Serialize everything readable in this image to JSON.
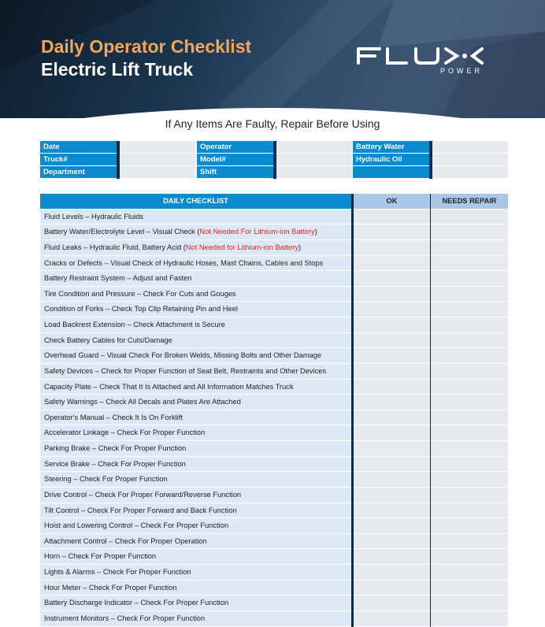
{
  "header": {
    "title": "Daily Operator Checklist",
    "subtitle": "Electric Lift Truck",
    "logo_text": "FLUX",
    "logo_sub": "POWER",
    "title_color": "#f2a65a"
  },
  "notice": "If Any Items Are Faulty, Repair Before Using",
  "info": [
    [
      "Date",
      "Truck#",
      "Department"
    ],
    [
      "Operator",
      "Model#",
      "Shift"
    ],
    [
      "Battery Water",
      "Hydraulic Oil",
      ""
    ]
  ],
  "checklist": {
    "headers": [
      "DAILY CHECKLIST",
      "OK",
      "NEEDS REPAIR"
    ],
    "items": [
      {
        "text": "Fluid Levels – Hydraulic Fluids"
      },
      {
        "text": "Battery Water/Electrolyte Level – Visual Check (",
        "note": "Not Needed For Lithium-ion Battery",
        "end": ")"
      },
      {
        "text": "Fluid Leaks – Hydraulic Fluid, Battery Acid (",
        "note": "Not Needed for Lithium-ion Battery",
        "end": ")"
      },
      {
        "text": "Cracks or Defects – Visual Check of Hydraulic Hoses, Mast Chains, Cables and Stops"
      },
      {
        "text": "Battery Restraint System – Adjust and Fasten"
      },
      {
        "text": "Tire Condition and Pressure – Check For Cuts and Gouges"
      },
      {
        "text": "Condition of Forks – Check Top Clip Retaining Pin and Heel"
      },
      {
        "text": "Load Backrest Extension – Check Attachment is Secure"
      },
      {
        "text": "Check Battery Cables for Cuts/Damage"
      },
      {
        "text": "Overhead Guard – Visual Check For Broken Welds, Missing Bolts and Other Damage"
      },
      {
        "text": "Safety Devices – Check for Proper Function of Seat Belt, Restraints and Other Devices"
      },
      {
        "text": "Capacity Plate – Check That It Is Attached and All Information Matches Truck"
      },
      {
        "text": "Safety Warnings – Check All Decals and Plates Are Attached"
      },
      {
        "text": "Operator's Manual – Check It Is On Forklift"
      },
      {
        "text": "Accelerator Linkage – Check For Proper Function"
      },
      {
        "text": "Parking Brake – Check For Proper Function"
      },
      {
        "text": "Service Brake – Check For Proper Function"
      },
      {
        "text": "Steering  – Check For Proper Function"
      },
      {
        "text": "Drive Control – Check For Proper Forward/Reverse Function"
      },
      {
        "text": "Tilt Control – Check For Proper Forward and Back Function"
      },
      {
        "text": "Hoist and Lowering Control – Check For Proper Function"
      },
      {
        "text": "Attachment Control – Check For Proper Operation"
      },
      {
        "text": "Horn – Check For Proper Function"
      },
      {
        "text": "Lights & Alarms – Check For Proper Function"
      },
      {
        "text": "Hour Meter – Check For Proper Function"
      },
      {
        "text": "Battery Discharge Indicator – Check For Proper Function"
      },
      {
        "text": "Instrument Monitors – Check For Proper Function"
      }
    ]
  }
}
